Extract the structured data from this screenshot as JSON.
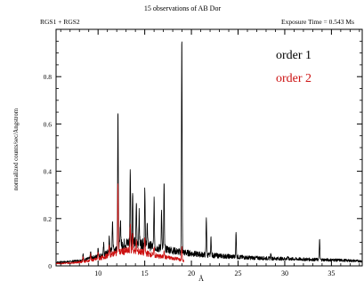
{
  "chart_data": {
    "type": "line",
    "title": "15 observations of AB Dor",
    "instrument_label": "RGS1 + RGS2",
    "exposure_label": "Exposure Time = 0.543 Ms",
    "xlabel": "Å",
    "ylabel": "normalized counts/sec/Angstrom",
    "xlim": [
      5.5,
      38.3
    ],
    "ylim": [
      0,
      1.0
    ],
    "x_ticks": [
      10,
      15,
      20,
      25,
      30,
      35
    ],
    "y_ticks": [
      0,
      0.2,
      0.4,
      0.6,
      0.8
    ],
    "y_tick_labels": [
      "0",
      "0.2",
      "0.4",
      "0.6",
      "0.8"
    ],
    "legend_position": "top-right",
    "colors": {
      "order1": "#000000",
      "order2": "#cc1111",
      "axes": "#000000"
    },
    "series": [
      {
        "name": "order 1",
        "color": "#000000",
        "continuum": [
          [
            5.5,
            0.015
          ],
          [
            7.0,
            0.018
          ],
          [
            8.5,
            0.025
          ],
          [
            9.5,
            0.035
          ],
          [
            10.5,
            0.045
          ],
          [
            11.5,
            0.065
          ],
          [
            12.5,
            0.09
          ],
          [
            13.5,
            0.1
          ],
          [
            14.5,
            0.095
          ],
          [
            15.5,
            0.085
          ],
          [
            16.5,
            0.075
          ],
          [
            17.5,
            0.07
          ],
          [
            18.5,
            0.06
          ],
          [
            19.5,
            0.055
          ],
          [
            20.5,
            0.05
          ],
          [
            22,
            0.045
          ],
          [
            24,
            0.04
          ],
          [
            26,
            0.035
          ],
          [
            28,
            0.032
          ],
          [
            30,
            0.03
          ],
          [
            32,
            0.028
          ],
          [
            34,
            0.026
          ],
          [
            36,
            0.024
          ],
          [
            38.3,
            0.02
          ]
        ],
        "lines": [
          {
            "x": 8.4,
            "y": 0.05
          },
          {
            "x": 9.2,
            "y": 0.06
          },
          {
            "x": 10.0,
            "y": 0.08
          },
          {
            "x": 10.6,
            "y": 0.09
          },
          {
            "x": 11.2,
            "y": 0.12
          },
          {
            "x": 11.55,
            "y": 0.2
          },
          {
            "x": 12.13,
            "y": 0.67
          },
          {
            "x": 12.4,
            "y": 0.2
          },
          {
            "x": 13.45,
            "y": 0.41
          },
          {
            "x": 13.7,
            "y": 0.33
          },
          {
            "x": 14.1,
            "y": 0.27
          },
          {
            "x": 14.4,
            "y": 0.22
          },
          {
            "x": 15.01,
            "y": 0.34
          },
          {
            "x": 15.26,
            "y": 0.18
          },
          {
            "x": 16.0,
            "y": 0.28
          },
          {
            "x": 16.8,
            "y": 0.23
          },
          {
            "x": 17.07,
            "y": 0.35
          },
          {
            "x": 18.97,
            "y": 0.98
          },
          {
            "x": 21.6,
            "y": 0.21
          },
          {
            "x": 22.1,
            "y": 0.12
          },
          {
            "x": 24.78,
            "y": 0.14
          },
          {
            "x": 28.5,
            "y": 0.05
          },
          {
            "x": 30.3,
            "y": 0.04
          },
          {
            "x": 33.73,
            "y": 0.11
          }
        ]
      },
      {
        "name": "order 2",
        "color": "#cc1111",
        "continuum": [
          [
            5.5,
            0.01
          ],
          [
            7.0,
            0.012
          ],
          [
            8.5,
            0.018
          ],
          [
            9.5,
            0.025
          ],
          [
            10.5,
            0.035
          ],
          [
            11.5,
            0.05
          ],
          [
            12.5,
            0.06
          ],
          [
            13.5,
            0.065
          ],
          [
            14.5,
            0.06
          ],
          [
            15.5,
            0.05
          ],
          [
            16.5,
            0.04
          ],
          [
            17.5,
            0.035
          ],
          [
            18.5,
            0.03
          ],
          [
            19.2,
            0.02
          ]
        ],
        "lines": [
          {
            "x": 8.4,
            "y": 0.04
          },
          {
            "x": 9.2,
            "y": 0.05
          },
          {
            "x": 10.0,
            "y": 0.06
          },
          {
            "x": 11.2,
            "y": 0.09
          },
          {
            "x": 12.13,
            "y": 0.36
          },
          {
            "x": 13.45,
            "y": 0.18
          },
          {
            "x": 13.7,
            "y": 0.14
          },
          {
            "x": 14.1,
            "y": 0.1
          },
          {
            "x": 15.01,
            "y": 0.12
          },
          {
            "x": 16.0,
            "y": 0.08
          },
          {
            "x": 17.07,
            "y": 0.07
          },
          {
            "x": 18.97,
            "y": 0.08
          }
        ]
      }
    ]
  }
}
